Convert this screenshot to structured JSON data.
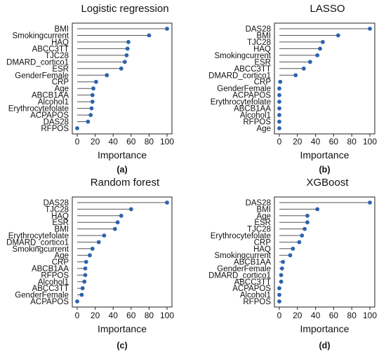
{
  "chart_data": [
    {
      "type": "lollipop",
      "title": "Logistic regression",
      "xlabel": "Importance",
      "caption": "(a)",
      "xlim": [
        0,
        100
      ],
      "xticks": [
        0,
        20,
        40,
        60,
        80,
        100
      ],
      "categories": [
        "BMI",
        "Smokingcurrent",
        "HAQ",
        "ABCC3TT",
        "TJC28",
        "DMARD_cortico1",
        "ESR",
        "GenderFemale",
        "CRP",
        "Age",
        "ABCB1AA",
        "Alcohol1",
        "Erythrocytefolate",
        "ACPAPOS",
        "DAS28",
        "RFPOS"
      ],
      "values": [
        100,
        80,
        57,
        56,
        55,
        53,
        49,
        33,
        21,
        18,
        17,
        17,
        16,
        15,
        12,
        0
      ]
    },
    {
      "type": "lollipop",
      "title": "LASSO",
      "xlabel": "Importance",
      "caption": "(b)",
      "xlim": [
        0,
        100
      ],
      "xticks": [
        0,
        20,
        40,
        60,
        80,
        100
      ],
      "categories": [
        "DAS28",
        "BMI",
        "TJC28",
        "HAQ",
        "Smokingcurrent",
        "ESR",
        "ABCC3TT",
        "DMARD_cortico1",
        "CRP",
        "GenderFemale",
        "ACPAPOS",
        "Erythrocytefolate",
        "ABCB1AA",
        "Alcohol1",
        "RFPOS",
        "Age"
      ],
      "values": [
        100,
        65,
        48,
        45,
        42,
        34,
        27,
        18,
        1,
        0,
        0,
        0,
        0,
        0,
        0,
        0
      ]
    },
    {
      "type": "lollipop",
      "title": "Random forest",
      "xlabel": "Importance",
      "caption": "(c)",
      "xlim": [
        0,
        100
      ],
      "xticks": [
        0,
        20,
        40,
        60,
        80,
        100
      ],
      "categories": [
        "DAS28",
        "TJC28",
        "HAQ",
        "ESR",
        "BMI",
        "Erythrocytefolate",
        "DMARD_cortico1",
        "Smokingcurrent",
        "Age",
        "CRP",
        "ABCB1AA",
        "RFPOS",
        "Alcohol1",
        "ABCC3TT",
        "GenderFemale",
        "ACPAPOS"
      ],
      "values": [
        100,
        60,
        49,
        45,
        42,
        30,
        24,
        17,
        14,
        10,
        9,
        9,
        8,
        6,
        5,
        0
      ]
    },
    {
      "type": "lollipop",
      "title": "XGBoost",
      "xlabel": "Importance",
      "caption": "(d)",
      "xlim": [
        0,
        100
      ],
      "xticks": [
        0,
        20,
        40,
        60,
        80,
        100
      ],
      "categories": [
        "DAS28",
        "BMI",
        "Age",
        "ESR",
        "TJC28",
        "Erythrocytefolate",
        "CRP",
        "HAQ",
        "Smokingcurrent",
        "ABCB1AA",
        "GenderFemale",
        "DMARD_cortico1",
        "ABCC3TT",
        "ACPAPOS",
        "Alcohol1",
        "RFPOS"
      ],
      "values": [
        100,
        42,
        31,
        31,
        28,
        25,
        22,
        15,
        12,
        4,
        3,
        2,
        2,
        0,
        0,
        0
      ]
    }
  ],
  "colors": {
    "point": "#2c63ad",
    "stem": "#555555",
    "axis": "#222222",
    "text": "#111111"
  }
}
